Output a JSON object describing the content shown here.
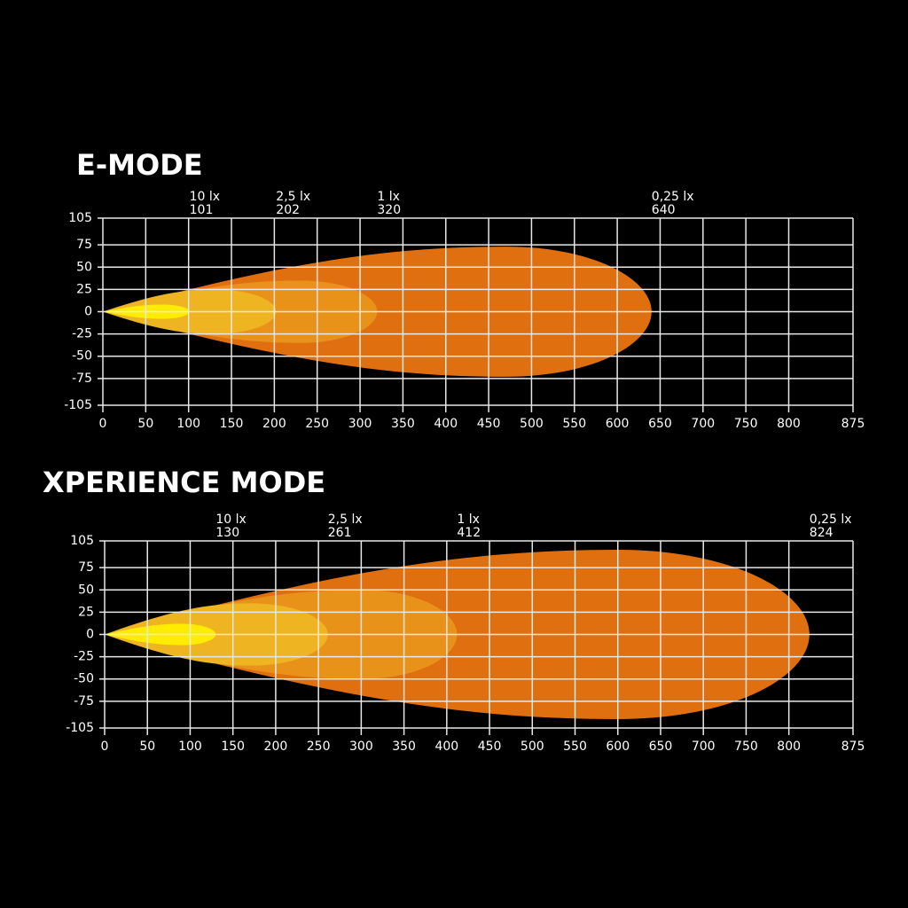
{
  "chart_data": [
    {
      "type": "beam",
      "title": "E-MODE",
      "xlim": [
        0,
        875
      ],
      "xticks": [
        0,
        50,
        100,
        150,
        200,
        250,
        300,
        350,
        400,
        450,
        500,
        550,
        600,
        650,
        700,
        750,
        800,
        875
      ],
      "ylim": [
        -105,
        105
      ],
      "yticks": [
        105,
        75,
        50,
        25,
        0,
        -25,
        -50,
        -75,
        -105
      ],
      "grid": true,
      "series": [
        {
          "name": "0,25 lx",
          "color": "#e0700f",
          "reach": 640,
          "width": 73,
          "peak": 470
        },
        {
          "name": "1 lx",
          "color": "#e8921a",
          "reach": 320,
          "width": 35,
          "peak": 230
        },
        {
          "name": "2,5 lx",
          "color": "#efb421",
          "reach": 202,
          "width": 25,
          "peak": 130
        },
        {
          "name": "10 lx",
          "color": "#ffec00",
          "reach": 101,
          "width": 8,
          "peak": 70
        }
      ]
    },
    {
      "type": "beam",
      "title": "XPERIENCE MODE",
      "xlim": [
        0,
        875
      ],
      "xticks": [
        0,
        50,
        100,
        150,
        200,
        250,
        300,
        350,
        400,
        450,
        500,
        550,
        600,
        650,
        700,
        750,
        800,
        875
      ],
      "ylim": [
        -105,
        105
      ],
      "yticks": [
        105,
        75,
        50,
        25,
        0,
        -25,
        -50,
        -75,
        -105
      ],
      "grid": true,
      "series": [
        {
          "name": "0,25 lx",
          "color": "#e0700f",
          "reach": 824,
          "width": 95,
          "peak": 600
        },
        {
          "name": "1 lx",
          "color": "#e8921a",
          "reach": 412,
          "width": 50,
          "peak": 300
        },
        {
          "name": "2,5 lx",
          "color": "#efb421",
          "reach": 261,
          "width": 35,
          "peak": 170
        },
        {
          "name": "10 lx",
          "color": "#ffec00",
          "reach": 130,
          "width": 12,
          "peak": 90
        }
      ]
    }
  ]
}
